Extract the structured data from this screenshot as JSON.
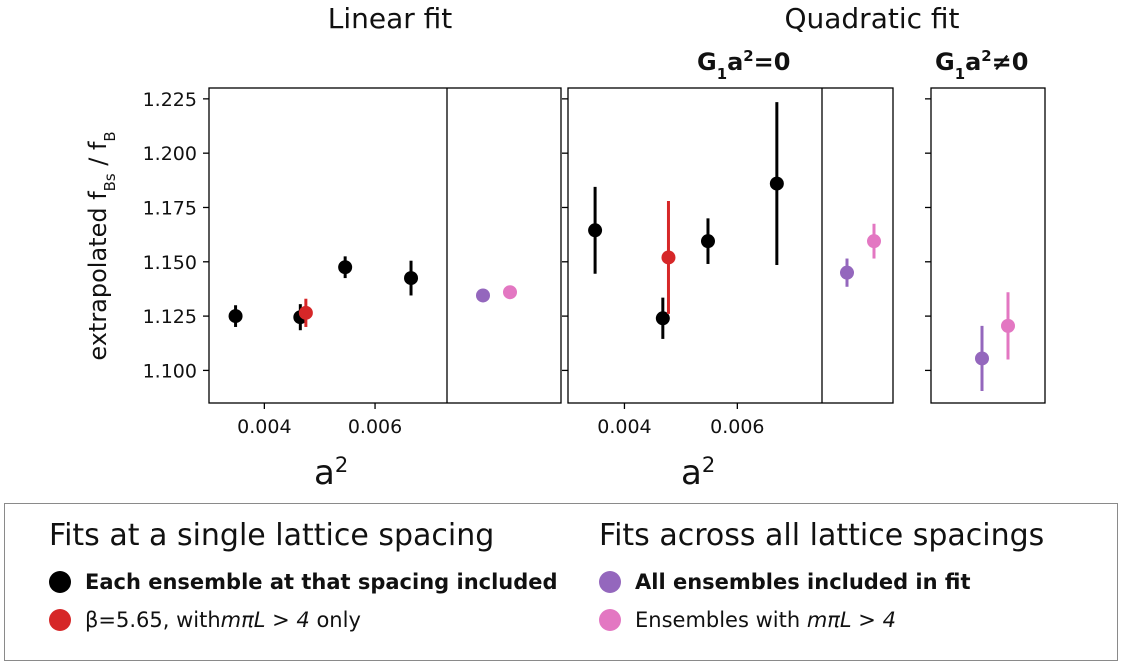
{
  "colors": {
    "single_all": "#000000",
    "single_beta": "#d62728",
    "across_all": "#9467bd",
    "across_mpi": "#e377c2"
  },
  "panel_titles": {
    "linear": "Linear fit",
    "quadratic": "Quadratic fit",
    "quad_left_sub": "G1a2=0",
    "quad_right_sub": "G1a2≠0"
  },
  "chart_data": [
    {
      "type": "scatter",
      "title": "Linear fit",
      "xlabel": "a2",
      "ylabel": "extrapolated fBs / fB",
      "xlim": [
        0.003,
        0.0073
      ],
      "ylim": [
        1.085,
        1.23
      ],
      "xticks": [
        "0.004",
        "0.006"
      ],
      "yticks": [
        "1.225",
        "1.200",
        "1.175",
        "1.150",
        "1.125",
        "1.100"
      ],
      "series": [
        {
          "key": "single_all",
          "points": [
            {
              "x": 0.00348,
              "y": 1.125,
              "err": 0.005
            },
            {
              "x": 0.00465,
              "y": 1.1245,
              "err": 0.006
            },
            {
              "x": 0.00546,
              "y": 1.1475,
              "err": 0.005
            },
            {
              "x": 0.00665,
              "y": 1.1425,
              "err": 0.008
            }
          ]
        },
        {
          "key": "single_beta",
          "points": [
            {
              "x": 0.00475,
              "y": 1.1265,
              "err": 0.0065
            }
          ]
        }
      ],
      "fit_results": [
        {
          "key": "across_all",
          "y": 1.1345,
          "err": 0.0
        },
        {
          "key": "across_mpi",
          "y": 1.136,
          "err": 0.0
        }
      ]
    },
    {
      "type": "scatter",
      "title": "Quadratic fit",
      "subtitle": "G1a2=0",
      "xlabel": "a2",
      "xlim": [
        0.003,
        0.0075
      ],
      "ylim": [
        1.085,
        1.23
      ],
      "xticks": [
        "0.004",
        "0.006"
      ],
      "series": [
        {
          "key": "single_all",
          "points": [
            {
              "x": 0.00348,
              "y": 1.1645,
              "err": 0.02
            },
            {
              "x": 0.00468,
              "y": 1.124,
              "err": 0.0095
            },
            {
              "x": 0.00548,
              "y": 1.1595,
              "err": 0.0105
            },
            {
              "x": 0.0067,
              "y": 1.186,
              "err": 0.0375
            }
          ]
        },
        {
          "key": "single_beta",
          "points": [
            {
              "x": 0.00478,
              "y": 1.152,
              "err": 0.026
            }
          ]
        }
      ],
      "fit_results": [
        {
          "key": "across_all",
          "y": 1.145,
          "err": 0.0065
        },
        {
          "key": "across_mpi",
          "y": 1.1595,
          "err": 0.008
        }
      ]
    },
    {
      "type": "scatter",
      "subtitle": "G1a2≠0",
      "ylim": [
        1.085,
        1.23
      ],
      "fit_results": [
        {
          "key": "across_all",
          "y": 1.1055,
          "err": 0.015
        },
        {
          "key": "across_mpi",
          "y": 1.1205,
          "err": 0.0155
        }
      ]
    }
  ],
  "legend": {
    "left_title": "Fits at a single lattice spacing",
    "right_title": "Fits across all lattice spacings",
    "items": {
      "single_all": "Each ensemble at that spacing included",
      "single_beta_pre": "β=5.65, with ",
      "single_beta_math": "mπL > 4",
      "single_beta_post": " only",
      "across_all": "All ensembles included in fit",
      "across_mpi_pre": "Ensembles with ",
      "across_mpi_math": "mπL > 4"
    }
  }
}
